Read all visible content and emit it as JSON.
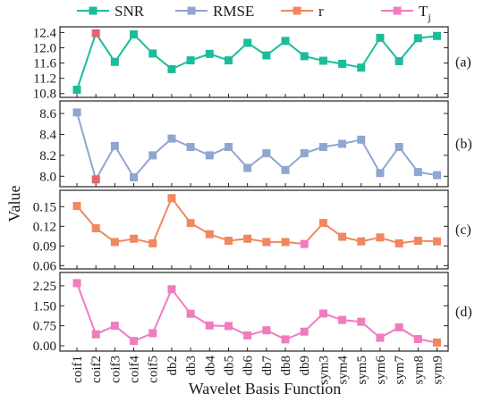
{
  "chart_data": {
    "type": "line",
    "xlabel": "Wavelet Basis Function",
    "ylabel": "Value",
    "categories": [
      "coif1",
      "coif2",
      "coif3",
      "coif4",
      "coif5",
      "db2",
      "db3",
      "db4",
      "db5",
      "db6",
      "db7",
      "db8",
      "db9",
      "sym3",
      "sym4",
      "sym5",
      "sym6",
      "sym7",
      "sym8",
      "sym9"
    ],
    "legend": [
      {
        "name": "SNR",
        "color": "#1bbc9b"
      },
      {
        "name": "RMSE",
        "color": "#8fa6cf"
      },
      {
        "name": "r",
        "color": "#f0875e"
      },
      {
        "name": "T",
        "sub": "j",
        "color": "#f07bbf"
      }
    ],
    "panels": [
      {
        "label": "(a)",
        "series": "SNR",
        "color": "#1bbc9b",
        "ylim": [
          10.7,
          12.55
        ],
        "yticks": [
          10.8,
          11.2,
          11.6,
          12.0,
          12.4
        ],
        "tick_labels": [
          "10.8",
          "11.2",
          "11.6",
          "12.0",
          "12.4"
        ],
        "values": [
          10.9,
          12.38,
          11.63,
          12.35,
          11.85,
          11.44,
          11.67,
          11.84,
          11.67,
          12.13,
          11.8,
          12.18,
          11.78,
          11.66,
          11.58,
          11.48,
          12.26,
          11.65,
          12.25,
          12.31
        ],
        "highlight_index": 1,
        "highlight_color": "#e8616e"
      },
      {
        "label": "(b)",
        "series": "RMSE",
        "color": "#8fa6cf",
        "ylim": [
          7.9,
          8.72
        ],
        "yticks": [
          8.0,
          8.2,
          8.4,
          8.6
        ],
        "tick_labels": [
          "8.0",
          "8.2",
          "8.4",
          "8.6"
        ],
        "values": [
          8.61,
          7.97,
          8.29,
          7.99,
          8.2,
          8.36,
          8.28,
          8.2,
          8.28,
          8.08,
          8.22,
          8.06,
          8.22,
          8.28,
          8.31,
          8.35,
          8.03,
          8.28,
          8.04,
          8.01
        ],
        "highlight_index": 1,
        "highlight_color": "#e8616e"
      },
      {
        "label": "(c)",
        "series": "r",
        "color": "#f0875e",
        "ylim": [
          0.055,
          0.175
        ],
        "yticks": [
          0.06,
          0.09,
          0.12,
          0.15
        ],
        "tick_labels": [
          "0.06",
          "0.09",
          "0.12",
          "0.15"
        ],
        "values": [
          0.151,
          0.117,
          0.096,
          0.101,
          0.094,
          0.163,
          0.125,
          0.108,
          0.098,
          0.101,
          0.096,
          0.096,
          0.093,
          0.125,
          0.104,
          0.097,
          0.103,
          0.094,
          0.098,
          0.097
        ],
        "highlight_index": 12,
        "highlight_color": "#f07bbf"
      },
      {
        "label": "(d)",
        "series": "Tj",
        "color": "#f07bbf",
        "ylim": [
          -0.2,
          2.75
        ],
        "yticks": [
          0.0,
          0.75,
          1.5,
          2.25
        ],
        "tick_labels": [
          "0.00",
          "0.75",
          "1.50",
          "2.25"
        ],
        "values": [
          2.35,
          0.43,
          0.75,
          0.18,
          0.47,
          2.12,
          1.2,
          0.76,
          0.74,
          0.39,
          0.58,
          0.24,
          0.53,
          1.21,
          0.97,
          0.9,
          0.3,
          0.69,
          0.25,
          0.12
        ],
        "highlight_index": 19,
        "highlight_color": "#f0875e"
      }
    ]
  }
}
